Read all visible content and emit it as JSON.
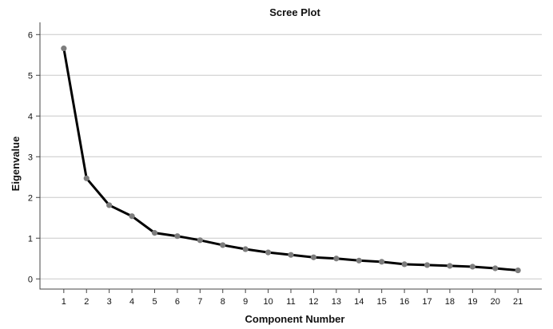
{
  "chart_data": {
    "type": "line",
    "title": "Scree Plot",
    "xlabel": "Component Number",
    "ylabel": "Eigenvalue",
    "x": [
      1,
      2,
      3,
      4,
      5,
      6,
      7,
      8,
      9,
      10,
      11,
      12,
      13,
      14,
      15,
      16,
      17,
      18,
      19,
      20,
      21
    ],
    "series": [
      {
        "values": [
          5.66,
          2.47,
          1.81,
          1.54,
          1.13,
          1.05,
          0.95,
          0.83,
          0.73,
          0.65,
          0.59,
          0.53,
          0.5,
          0.45,
          0.42,
          0.36,
          0.34,
          0.32,
          0.3,
          0.26,
          0.21
        ]
      }
    ],
    "ylim": [
      -0.25,
      6.3
    ],
    "xlim": [
      -0.05,
      22.05
    ],
    "yticks": [
      0,
      1,
      2,
      3,
      4,
      5,
      6
    ],
    "xticks": [
      1,
      2,
      3,
      4,
      5,
      6,
      7,
      8,
      9,
      10,
      11,
      12,
      13,
      14,
      15,
      16,
      17,
      18,
      19,
      20,
      21
    ],
    "grid": "horizontal",
    "legend": "none",
    "colors": {
      "line": "#000000",
      "marker": "#7d7d7d",
      "grid": "#c8c8c8"
    }
  }
}
